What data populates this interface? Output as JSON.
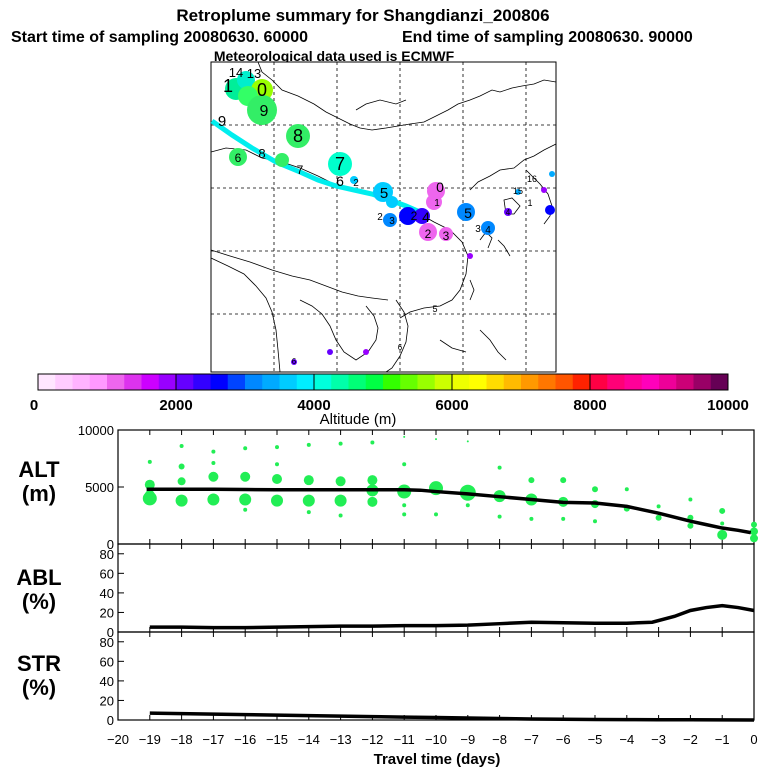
{
  "header": {
    "title": "Retroplume summary for Shangdianzi_200806",
    "start_label": "Start time of sampling 20080630. 60000",
    "end_label": "End time of sampling 20080630. 90000",
    "met_label": "Meteorological data used is ECMWF"
  },
  "colorbar": {
    "title": "Altitude (m)",
    "ticks": [
      "0",
      "2000",
      "4000",
      "6000",
      "8000",
      "10000"
    ],
    "colors": [
      "#ffe6ff",
      "#ffccff",
      "#ffb3ff",
      "#ff99ff",
      "#ee66ee",
      "#dd33ee",
      "#cc00ff",
      "#9900ff",
      "#6600ff",
      "#3300ff",
      "#0000ff",
      "#0044ff",
      "#0088ff",
      "#00aaff",
      "#00ccff",
      "#00eeff",
      "#00ffdd",
      "#00ffaa",
      "#00ff77",
      "#00ff44",
      "#33ff00",
      "#66ff00",
      "#99ff00",
      "#ccff00",
      "#eeff00",
      "#ffff00",
      "#ffdd00",
      "#ffbb00",
      "#ff9900",
      "#ff7700",
      "#ff5500",
      "#ff2200",
      "#ff0044",
      "#ff0077",
      "#ff0099",
      "#ff00bb",
      "#ee0099",
      "#cc0077",
      "#990066",
      "#660055"
    ]
  },
  "map": {
    "labels": [
      {
        "t": "14",
        "c": "#00eeee"
      },
      {
        "t": "13",
        "c": "#00eeee"
      },
      {
        "t": "1",
        "c": "#33ff66"
      },
      {
        "t": "0",
        "c": "#99ff00"
      },
      {
        "t": "9",
        "c": "#33ee66"
      },
      {
        "t": "8",
        "c": "#33ee66"
      },
      {
        "t": "9",
        "c": "#ffffff"
      },
      {
        "t": "6",
        "c": "#33ee66"
      },
      {
        "t": "8",
        "c": "#ffffff"
      },
      {
        "t": "7",
        "c": "#33ee66"
      },
      {
        "t": "7",
        "c": "#00ffcc"
      },
      {
        "t": "6",
        "c": "#00ffcc"
      },
      {
        "t": "5",
        "c": "#00ccff"
      },
      {
        "t": "2",
        "c": "#00ccff"
      },
      {
        "t": "0",
        "c": "#ee66ee"
      },
      {
        "t": "1",
        "c": "#ee66ee"
      },
      {
        "t": "3",
        "c": "#0088ff"
      },
      {
        "t": "2",
        "c": "#0088ff"
      },
      {
        "t": "4",
        "c": "#0000ff"
      },
      {
        "t": "2",
        "c": "#3300ff"
      },
      {
        "t": "2",
        "c": "#ee66ee"
      },
      {
        "t": "3",
        "c": "#ee66ee"
      },
      {
        "t": "5",
        "c": "#0088ff"
      },
      {
        "t": "3",
        "c": "#00aaff"
      },
      {
        "t": "4",
        "c": "#0088ff"
      },
      {
        "t": "15",
        "c": "#00aaff"
      },
      {
        "t": "16",
        "c": "#00ccff"
      },
      {
        "t": "1",
        "c": "#6600ff"
      },
      {
        "t": "4",
        "c": "#9900ff"
      },
      {
        "t": "5",
        "c": "#ee66ee"
      },
      {
        "t": "6",
        "c": "#9900ff"
      },
      {
        "t": "6",
        "c": "#9900ff"
      }
    ]
  },
  "panels": {
    "alt": {
      "label1": "ALT",
      "label2": "(m)"
    },
    "abl": {
      "label1": "ABL",
      "label2": "(%)"
    },
    "str": {
      "label1": "STR",
      "label2": "(%)"
    }
  },
  "x_axis": {
    "title": "Travel time (days)"
  },
  "chart_data": [
    {
      "type": "scatter",
      "title": "ALT (m)",
      "xlim": [
        -20,
        0
      ],
      "ylim": [
        0,
        10000
      ],
      "yticks": [
        0,
        5000,
        10000
      ],
      "mean_line": {
        "x": [
          -19.1,
          -18,
          -17,
          -16,
          -15,
          -14,
          -13,
          -12,
          -11,
          -10.5,
          -10,
          -9,
          -8,
          -7,
          -6,
          -5,
          -4,
          -3.5,
          -3,
          -2.5,
          -2,
          -1.5,
          -1,
          -0.5,
          -0.1
        ],
        "y": [
          4800,
          4800,
          4800,
          4780,
          4760,
          4760,
          4760,
          4760,
          4760,
          4720,
          4600,
          4400,
          4150,
          3900,
          3650,
          3600,
          3300,
          3000,
          2700,
          2350,
          2000,
          1700,
          1400,
          1200,
          1000
        ]
      },
      "points": [
        {
          "x": -19,
          "y": 7200,
          "s": 2
        },
        {
          "x": -19,
          "y": 5200,
          "s": 5
        },
        {
          "x": -19,
          "y": 4000,
          "s": 7
        },
        {
          "x": -19,
          "y": 4300,
          "s": 5
        },
        {
          "x": -18,
          "y": 8600,
          "s": 2
        },
        {
          "x": -18,
          "y": 6800,
          "s": 3
        },
        {
          "x": -18,
          "y": 5500,
          "s": 4
        },
        {
          "x": -18,
          "y": 3800,
          "s": 6
        },
        {
          "x": -17,
          "y": 8100,
          "s": 2
        },
        {
          "x": -17,
          "y": 5900,
          "s": 5
        },
        {
          "x": -17,
          "y": 3900,
          "s": 6
        },
        {
          "x": -17,
          "y": 7100,
          "s": 2
        },
        {
          "x": -16,
          "y": 8400,
          "s": 2
        },
        {
          "x": -16,
          "y": 5900,
          "s": 5
        },
        {
          "x": -16,
          "y": 3900,
          "s": 6
        },
        {
          "x": -16,
          "y": 3000,
          "s": 2
        },
        {
          "x": -15,
          "y": 8500,
          "s": 2
        },
        {
          "x": -15,
          "y": 5700,
          "s": 5
        },
        {
          "x": -15,
          "y": 3800,
          "s": 6
        },
        {
          "x": -15,
          "y": 7000,
          "s": 2
        },
        {
          "x": -14,
          "y": 8700,
          "s": 2
        },
        {
          "x": -14,
          "y": 5600,
          "s": 5
        },
        {
          "x": -14,
          "y": 3800,
          "s": 6
        },
        {
          "x": -14,
          "y": 2800,
          "s": 2
        },
        {
          "x": -13,
          "y": 8800,
          "s": 2
        },
        {
          "x": -13,
          "y": 5500,
          "s": 5
        },
        {
          "x": -13,
          "y": 3800,
          "s": 6
        },
        {
          "x": -13,
          "y": 2500,
          "s": 2
        },
        {
          "x": -12,
          "y": 8900,
          "s": 2
        },
        {
          "x": -12,
          "y": 5600,
          "s": 5
        },
        {
          "x": -12,
          "y": 4700,
          "s": 6
        },
        {
          "x": -12,
          "y": 3700,
          "s": 5
        },
        {
          "x": -11,
          "y": 9400,
          "s": 1
        },
        {
          "x": -11,
          "y": 7000,
          "s": 2
        },
        {
          "x": -11,
          "y": 4600,
          "s": 7
        },
        {
          "x": -11,
          "y": 2600,
          "s": 2
        },
        {
          "x": -11,
          "y": 3400,
          "s": 2
        },
        {
          "x": -10,
          "y": 9200,
          "s": 1
        },
        {
          "x": -10,
          "y": 4900,
          "s": 7
        },
        {
          "x": -10,
          "y": 2600,
          "s": 2
        },
        {
          "x": -9,
          "y": 9000,
          "s": 1
        },
        {
          "x": -9,
          "y": 4500,
          "s": 8
        },
        {
          "x": -9,
          "y": 3400,
          "s": 2
        },
        {
          "x": -8,
          "y": 6700,
          "s": 2
        },
        {
          "x": -8,
          "y": 4200,
          "s": 6
        },
        {
          "x": -8,
          "y": 2400,
          "s": 2
        },
        {
          "x": -7,
          "y": 5600,
          "s": 3
        },
        {
          "x": -7,
          "y": 3900,
          "s": 6
        },
        {
          "x": -7,
          "y": 2200,
          "s": 2
        },
        {
          "x": -6,
          "y": 5600,
          "s": 3
        },
        {
          "x": -6,
          "y": 3700,
          "s": 5
        },
        {
          "x": -6,
          "y": 2200,
          "s": 2
        },
        {
          "x": -5,
          "y": 4800,
          "s": 3
        },
        {
          "x": -5,
          "y": 3500,
          "s": 4
        },
        {
          "x": -5,
          "y": 2000,
          "s": 2
        },
        {
          "x": -4,
          "y": 4800,
          "s": 2
        },
        {
          "x": -4,
          "y": 3100,
          "s": 3
        },
        {
          "x": -3,
          "y": 3300,
          "s": 2
        },
        {
          "x": -3,
          "y": 2300,
          "s": 3
        },
        {
          "x": -2,
          "y": 3900,
          "s": 2
        },
        {
          "x": -2,
          "y": 2300,
          "s": 3
        },
        {
          "x": -2,
          "y": 1600,
          "s": 3
        },
        {
          "x": -1,
          "y": 2900,
          "s": 3
        },
        {
          "x": -1,
          "y": 1800,
          "s": 2
        },
        {
          "x": -1,
          "y": 800,
          "s": 5
        },
        {
          "x": 0,
          "y": 1700,
          "s": 3
        },
        {
          "x": 0,
          "y": 1100,
          "s": 4
        },
        {
          "x": 0,
          "y": 500,
          "s": 4
        }
      ]
    },
    {
      "type": "line",
      "title": "ABL (%)",
      "xlim": [
        -20,
        0
      ],
      "ylim": [
        0,
        90
      ],
      "yticks": [
        0,
        20,
        40,
        60,
        80
      ],
      "x": [
        -19,
        -18,
        -17,
        -16,
        -15,
        -14,
        -13,
        -12,
        -11,
        -10,
        -9,
        -8,
        -7,
        -6,
        -5,
        -4,
        -3.2,
        -2.5,
        -2,
        -1.5,
        -1,
        -0.5,
        0
      ],
      "y": [
        5,
        5,
        4.5,
        4.5,
        5,
        5.5,
        6,
        6,
        6.5,
        6.5,
        7,
        8.5,
        10,
        9.5,
        9,
        9,
        10,
        16,
        22,
        25,
        27,
        25,
        22
      ]
    },
    {
      "type": "line",
      "title": "STR (%)",
      "xlim": [
        -20,
        0
      ],
      "ylim": [
        0,
        90
      ],
      "yticks": [
        0,
        20,
        40,
        60,
        80
      ],
      "xticks": [
        -20,
        -19,
        -18,
        -17,
        -16,
        -15,
        -14,
        -13,
        -12,
        -11,
        -10,
        -9,
        -8,
        -7,
        -6,
        -5,
        -4,
        -3,
        -2,
        -1,
        0
      ],
      "x": [
        -19,
        -18,
        -17,
        -16,
        -15,
        -14,
        -13,
        -12,
        -11,
        -10,
        -9,
        -8,
        -7,
        -6,
        -5,
        -4,
        -3,
        -2,
        -1,
        0
      ],
      "y": [
        7,
        6.5,
        6,
        5.5,
        5,
        4.5,
        4,
        3.5,
        3,
        2.5,
        2,
        1.5,
        1,
        0.8,
        0.5,
        0.4,
        0.3,
        0.2,
        0.1,
        0
      ]
    }
  ]
}
